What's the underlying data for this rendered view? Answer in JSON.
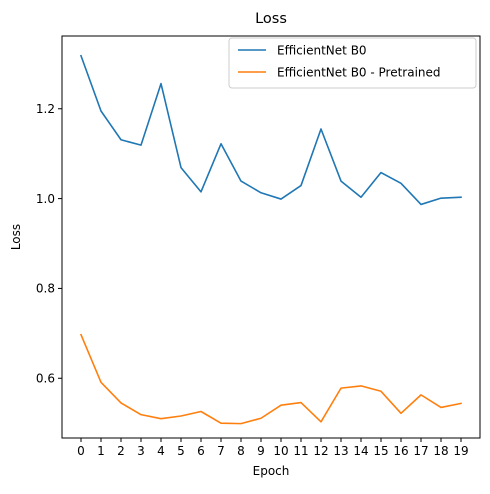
{
  "chart_data": {
    "type": "line",
    "title": "Loss",
    "xlabel": "Epoch",
    "ylabel": "Loss",
    "x": [
      0,
      1,
      2,
      3,
      4,
      5,
      6,
      7,
      8,
      9,
      10,
      11,
      12,
      13,
      14,
      15,
      16,
      17,
      18,
      19
    ],
    "x_tick_labels": [
      "0",
      "1",
      "2",
      "3",
      "4",
      "5",
      "6",
      "7",
      "8",
      "9",
      "10",
      "11",
      "12",
      "13",
      "14",
      "15",
      "16",
      "17",
      "18",
      "19"
    ],
    "y_ticks": [
      0.6,
      0.8,
      1.0,
      1.2
    ],
    "y_tick_labels": [
      "0.6",
      "0.8",
      "1.0",
      "1.2"
    ],
    "xlim": [
      -0.95,
      19.95
    ],
    "ylim": [
      0.467,
      1.362
    ],
    "grid": false,
    "legend_position": "top-right",
    "series": [
      {
        "name": "EfficientNet B0",
        "color": "#1f77b4",
        "values": [
          1.318,
          1.195,
          1.131,
          1.119,
          1.256,
          1.069,
          1.015,
          1.122,
          1.039,
          1.013,
          0.999,
          1.029,
          1.155,
          1.039,
          1.003,
          1.058,
          1.034,
          0.987,
          1.001,
          1.003
        ]
      },
      {
        "name": "EfficientNet B0 - Pretrained",
        "color": "#ff7f0e",
        "values": [
          0.697,
          0.591,
          0.545,
          0.519,
          0.51,
          0.516,
          0.526,
          0.5,
          0.499,
          0.511,
          0.54,
          0.546,
          0.503,
          0.578,
          0.583,
          0.571,
          0.522,
          0.563,
          0.535,
          0.544
        ]
      }
    ]
  }
}
